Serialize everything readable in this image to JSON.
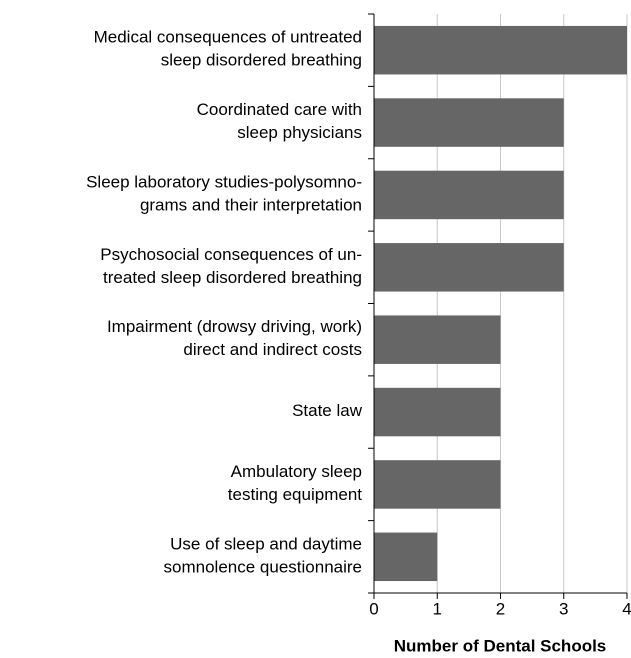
{
  "chart_data": {
    "type": "bar",
    "orientation": "horizontal",
    "categories": [
      "Medical consequences of untreated\nsleep disordered breathing",
      "Coordinated care with\nsleep physicians",
      "Sleep laboratory studies-polysomno-\ngrams and their interpretation",
      "Psychosocial consequences of un-\ntreated sleep disordered breathing",
      "Impairment (drowsy driving, work)\ndirect and indirect costs",
      "State law",
      "Ambulatory sleep\ntesting equipment",
      "Use of sleep and daytime\nsomnolence questionnaire"
    ],
    "values": [
      4,
      3,
      3,
      3,
      2,
      2,
      2,
      1
    ],
    "color": "#666666",
    "xlabel": "Number of Dental Schools",
    "xlim": [
      0,
      4
    ],
    "xticks": [
      0,
      1,
      2,
      3,
      4
    ],
    "grid": true
  }
}
